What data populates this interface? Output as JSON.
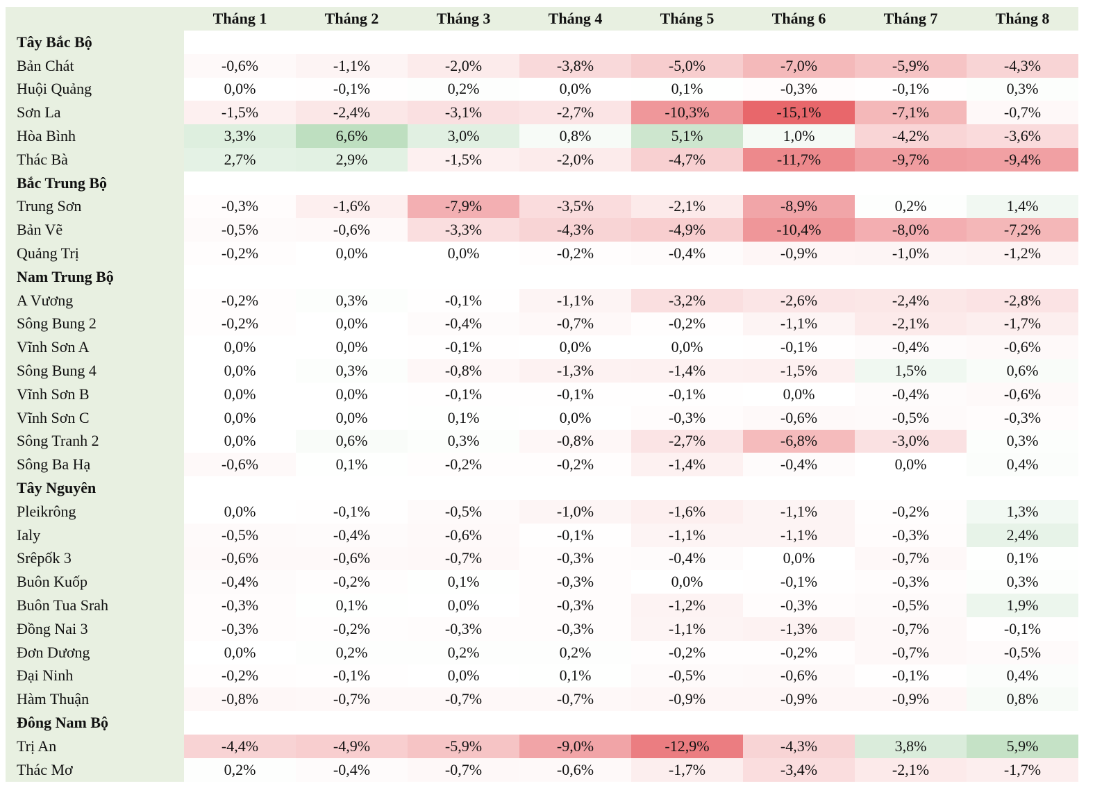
{
  "chart_data": {
    "type": "heatmap",
    "columns": [
      "Tháng 1",
      "Tháng 2",
      "Tháng 3",
      "Tháng 4",
      "Tháng 5",
      "Tháng 6",
      "Tháng 7",
      "Tháng 8"
    ],
    "value_format": "percent, comma decimal, one decimal place",
    "color_scale": {
      "negative": "#e8676b",
      "neutral": "#ffffff",
      "positive": "#6ab56e",
      "limit": 15.1
    },
    "groups": [
      {
        "name": "Tây Bắc Bộ",
        "rows": [
          {
            "name": "Bản Chát",
            "values": [
              -0.6,
              -1.1,
              -2.0,
              -3.8,
              -5.0,
              -7.0,
              -5.9,
              -4.3
            ]
          },
          {
            "name": "Huội Quảng",
            "values": [
              0.0,
              -0.1,
              0.2,
              0.0,
              0.1,
              -0.3,
              -0.1,
              0.3
            ]
          },
          {
            "name": "Sơn La",
            "values": [
              -1.5,
              -2.4,
              -3.1,
              -2.7,
              -10.3,
              -15.1,
              -7.1,
              -0.7
            ]
          },
          {
            "name": "Hòa Bình",
            "values": [
              3.3,
              6.6,
              3.0,
              0.8,
              5.1,
              1.0,
              -4.2,
              -3.6
            ]
          },
          {
            "name": "Thác Bà",
            "values": [
              2.7,
              2.9,
              -1.5,
              -2.0,
              -4.7,
              -11.7,
              -9.7,
              -9.4
            ]
          }
        ]
      },
      {
        "name": "Bắc Trung Bộ",
        "rows": [
          {
            "name": "Trung Sơn",
            "values": [
              -0.3,
              -1.6,
              -7.9,
              -3.5,
              -2.1,
              -8.9,
              0.2,
              1.4
            ]
          },
          {
            "name": "Bản Vẽ",
            "values": [
              -0.5,
              -0.6,
              -3.3,
              -4.3,
              -4.9,
              -10.4,
              -8.0,
              -7.2
            ]
          },
          {
            "name": "Quảng Trị",
            "values": [
              -0.2,
              0.0,
              0.0,
              -0.2,
              -0.4,
              -0.9,
              -1.0,
              -1.2
            ]
          }
        ]
      },
      {
        "name": "Nam Trung Bộ",
        "rows": [
          {
            "name": "A Vương",
            "values": [
              -0.2,
              0.3,
              -0.1,
              -1.1,
              -3.2,
              -2.6,
              -2.4,
              -2.8
            ]
          },
          {
            "name": "Sông Bung 2",
            "values": [
              -0.2,
              0.0,
              -0.4,
              -0.7,
              -0.2,
              -1.1,
              -2.1,
              -1.7
            ]
          },
          {
            "name": "Vĩnh Sơn A",
            "values": [
              0.0,
              0.0,
              -0.1,
              0.0,
              0.0,
              -0.1,
              -0.4,
              -0.6
            ]
          },
          {
            "name": "Sông Bung 4",
            "values": [
              0.0,
              0.3,
              -0.8,
              -1.3,
              -1.4,
              -1.5,
              1.5,
              0.6
            ]
          },
          {
            "name": "Vĩnh Sơn B",
            "values": [
              0.0,
              0.0,
              -0.1,
              -0.1,
              -0.1,
              0.0,
              -0.4,
              -0.6
            ]
          },
          {
            "name": "Vĩnh Sơn C",
            "values": [
              0.0,
              0.0,
              0.1,
              0.0,
              -0.3,
              -0.6,
              -0.5,
              -0.3
            ]
          },
          {
            "name": "Sông Tranh 2",
            "values": [
              0.0,
              0.6,
              0.3,
              -0.8,
              -2.7,
              -6.8,
              -3.0,
              0.3
            ]
          },
          {
            "name": "Sông Ba Hạ",
            "values": [
              -0.6,
              0.1,
              -0.2,
              -0.2,
              -1.4,
              -0.4,
              0.0,
              0.4
            ]
          }
        ]
      },
      {
        "name": "Tây Nguyên",
        "rows": [
          {
            "name": "Pleikrông",
            "values": [
              0.0,
              -0.1,
              -0.5,
              -1.0,
              -1.6,
              -1.1,
              -0.2,
              1.3
            ]
          },
          {
            "name": "Ialy",
            "values": [
              -0.5,
              -0.4,
              -0.6,
              -0.1,
              -1.1,
              -1.1,
              -0.3,
              2.4
            ]
          },
          {
            "name": "Srêpốk 3",
            "values": [
              -0.6,
              -0.6,
              -0.7,
              -0.3,
              -0.4,
              0.0,
              -0.7,
              0.1
            ]
          },
          {
            "name": "Buôn Kuốp",
            "values": [
              -0.4,
              -0.2,
              0.1,
              -0.3,
              0.0,
              -0.1,
              -0.3,
              0.3
            ]
          },
          {
            "name": "Buôn Tua Srah",
            "values": [
              -0.3,
              0.1,
              0.0,
              -0.3,
              -1.2,
              -0.3,
              -0.5,
              1.9
            ]
          },
          {
            "name": "Đồng Nai 3",
            "values": [
              -0.3,
              -0.2,
              -0.3,
              -0.3,
              -1.1,
              -1.3,
              -0.7,
              -0.1
            ]
          },
          {
            "name": "Đơn Dương",
            "values": [
              0.0,
              0.2,
              0.2,
              0.2,
              -0.2,
              -0.2,
              -0.7,
              -0.5
            ]
          },
          {
            "name": "Đại Ninh",
            "values": [
              -0.2,
              -0.1,
              0.0,
              0.1,
              -0.5,
              -0.6,
              -0.1,
              0.4
            ]
          },
          {
            "name": "Hàm Thuận",
            "values": [
              -0.8,
              -0.7,
              -0.7,
              -0.7,
              -0.9,
              -0.9,
              -0.9,
              0.8
            ]
          }
        ]
      },
      {
        "name": "Đông Nam Bộ",
        "rows": [
          {
            "name": "Trị An",
            "values": [
              -4.4,
              -4.9,
              -5.9,
              -9.0,
              -12.9,
              -4.3,
              3.8,
              5.9
            ]
          },
          {
            "name": "Thác Mơ",
            "values": [
              0.2,
              -0.4,
              -0.7,
              -0.6,
              -1.7,
              -3.4,
              -2.1,
              -1.7
            ]
          }
        ]
      }
    ]
  }
}
